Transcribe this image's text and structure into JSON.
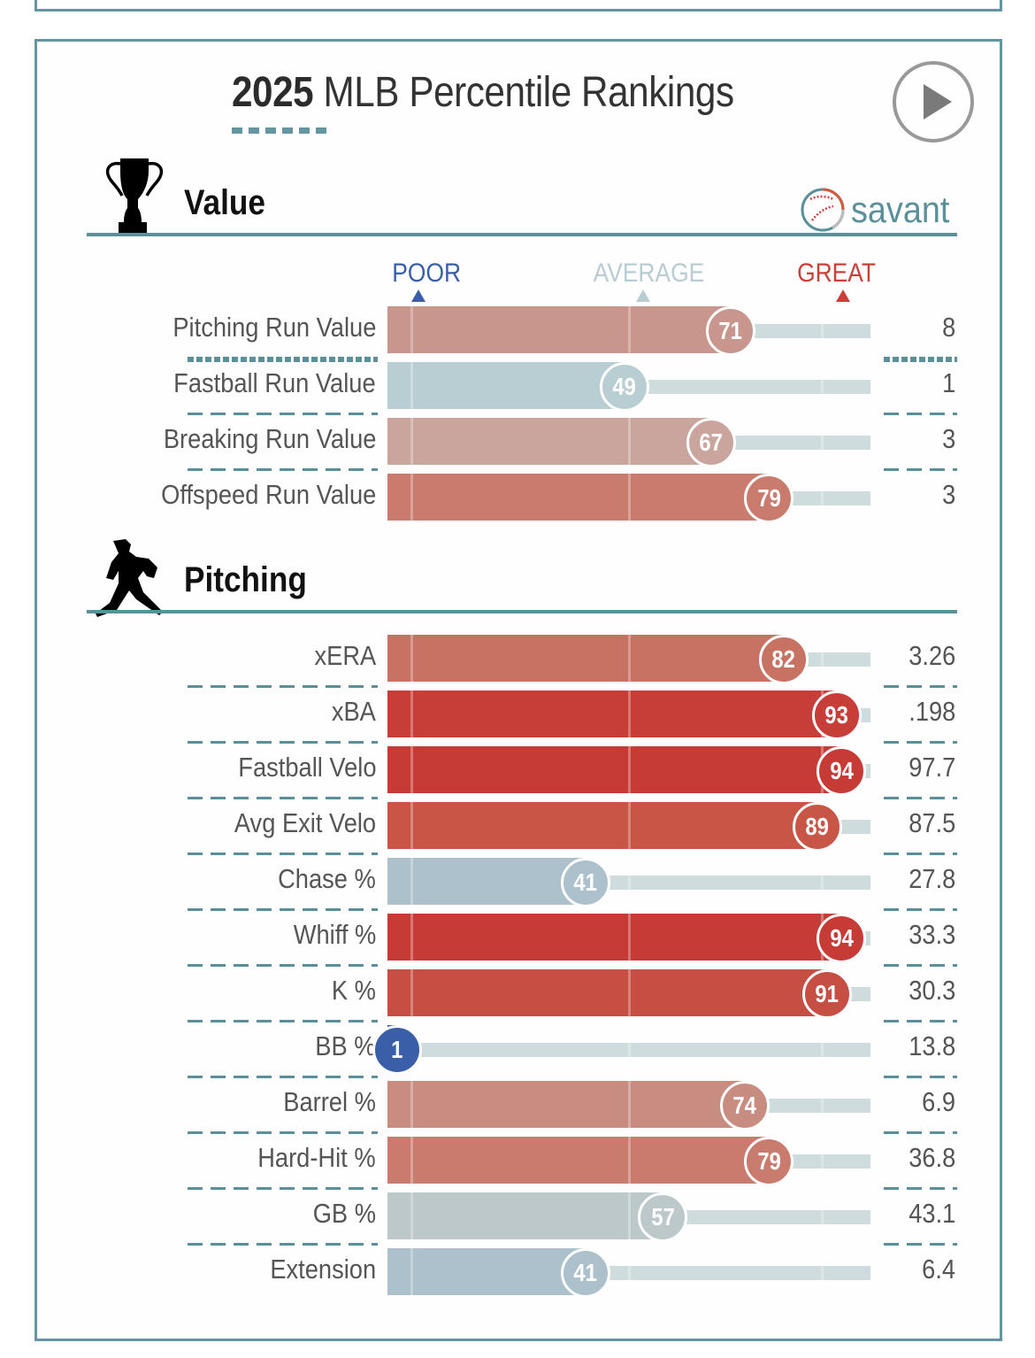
{
  "title": {
    "year": "2025",
    "rest": " MLB Percentile Rankings"
  },
  "controls": {
    "play_label": "play"
  },
  "brand": {
    "name": "savant",
    "icon": "baseball-icon"
  },
  "scale": {
    "poor": "POOR",
    "average": "AVERAGE",
    "great": "GREAT"
  },
  "colors": {
    "poor": "#3b5ea8",
    "average": "#b9ccd3",
    "great": "#c8403a",
    "accent": "#5b8f99"
  },
  "chart_data": {
    "type": "bar",
    "title": "2025 MLB Percentile Rankings",
    "xlabel": "Percentile",
    "xlim": [
      0,
      100
    ],
    "reference_marks": [
      {
        "label": "POOR",
        "value": 5
      },
      {
        "label": "AVERAGE",
        "value": 50
      },
      {
        "label": "GREAT",
        "value": 90
      }
    ],
    "sections": [
      {
        "name": "Value",
        "icon": "trophy-icon",
        "rows": [
          {
            "label": "Pitching Run Value",
            "percentile": 71,
            "value": "8",
            "color": "#c8968c"
          },
          {
            "label": "Fastball Run Value",
            "percentile": 49,
            "value": "1",
            "color": "#b9ced3"
          },
          {
            "label": "Breaking Run Value",
            "percentile": 67,
            "value": "3",
            "color": "#c9a59e"
          },
          {
            "label": "Offspeed Run Value",
            "percentile": 79,
            "value": "3",
            "color": "#c97b6d"
          }
        ]
      },
      {
        "name": "Pitching",
        "icon": "pitcher-icon",
        "rows": [
          {
            "label": "xERA",
            "percentile": 82,
            "value": "3.26",
            "color": "#c87263"
          },
          {
            "label": "xBA",
            "percentile": 93,
            "value": ".198",
            "color": "#c73e39"
          },
          {
            "label": "Fastball Velo",
            "percentile": 94,
            "value": "97.7",
            "color": "#c73b36"
          },
          {
            "label": "Avg Exit Velo",
            "percentile": 89,
            "value": "87.5",
            "color": "#c85647"
          },
          {
            "label": "Chase %",
            "percentile": 41,
            "value": "27.8",
            "color": "#adc1cc"
          },
          {
            "label": "Whiff %",
            "percentile": 94,
            "value": "33.3",
            "color": "#c73b36"
          },
          {
            "label": "K %",
            "percentile": 91,
            "value": "30.3",
            "color": "#c74e43"
          },
          {
            "label": "BB %",
            "percentile": 1,
            "value": "13.8",
            "color": "#3b5ea8"
          },
          {
            "label": "Barrel %",
            "percentile": 74,
            "value": "6.9",
            "color": "#c98c80"
          },
          {
            "label": "Hard-Hit %",
            "percentile": 79,
            "value": "36.8",
            "color": "#c97b6d"
          },
          {
            "label": "GB %",
            "percentile": 57,
            "value": "43.1",
            "color": "#bdc8ca"
          },
          {
            "label": "Extension",
            "percentile": 41,
            "value": "6.4",
            "color": "#adc1cc"
          }
        ]
      }
    ]
  }
}
